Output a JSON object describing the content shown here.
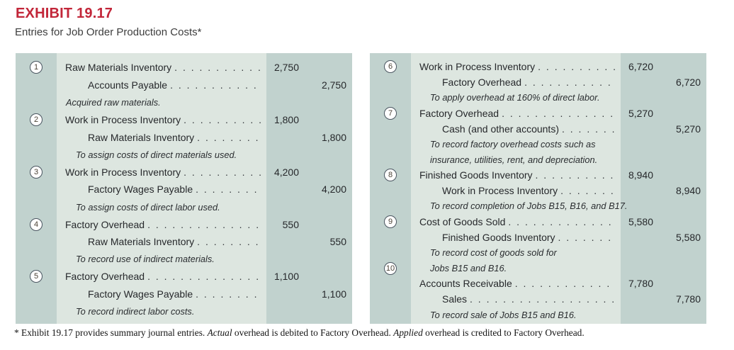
{
  "header": {
    "exhibit_label": "EXHIBIT 19.17",
    "subtitle": "Entries for Job Order Production Costs*"
  },
  "colors": {
    "title_red": "#c22639",
    "panel_light_green": "#dde6e0",
    "panel_medium_green": "#c1d2ce",
    "text_dark": "#26282b"
  },
  "panels": {
    "left": {
      "lines": [
        {
          "circle": "1",
          "kind": "debit",
          "text": "Raw Materials Inventory",
          "debit": "2,750"
        },
        {
          "kind": "credit",
          "text": "Accounts Payable",
          "credit": "2,750"
        },
        {
          "kind": "noteflush",
          "text": "Acquired raw materials."
        },
        {
          "circle": "2",
          "kind": "debit",
          "text": "Work in Process Inventory",
          "debit": "1,800"
        },
        {
          "kind": "credit",
          "text": "Raw Materials Inventory",
          "credit": "1,800"
        },
        {
          "kind": "note",
          "text": "To assign costs of direct materials used."
        },
        {
          "circle": "3",
          "kind": "debit",
          "text": "Work in Process Inventory",
          "debit": "4,200"
        },
        {
          "kind": "credit",
          "text": "Factory Wages Payable",
          "credit": "4,200"
        },
        {
          "kind": "note",
          "text": "To assign costs of direct labor used."
        },
        {
          "circle": "4",
          "kind": "debit",
          "text": "Factory Overhead",
          "debit": "550"
        },
        {
          "kind": "credit",
          "text": "Raw Materials Inventory",
          "credit": "550"
        },
        {
          "kind": "note",
          "text": "To record use of indirect materials."
        },
        {
          "circle": "5",
          "kind": "debit",
          "text": "Factory Overhead",
          "debit": "1,100"
        },
        {
          "kind": "credit",
          "text": "Factory Wages Payable",
          "credit": "1,100"
        },
        {
          "kind": "note",
          "text": "To record indirect labor costs."
        }
      ]
    },
    "right": {
      "lines": [
        {
          "circle": "6",
          "kind": "debit",
          "text": "Work in Process Inventory",
          "debit": "6,720"
        },
        {
          "kind": "credit",
          "text": "Factory Overhead",
          "credit": "6,720"
        },
        {
          "kind": "note",
          "text": "To apply overhead at 160% of direct labor."
        },
        {
          "circle": "7",
          "kind": "debit",
          "text": "Factory Overhead",
          "debit": "5,270"
        },
        {
          "kind": "credit",
          "text": "Cash (and other accounts)",
          "credit": "5,270"
        },
        {
          "kind": "note",
          "text": "To record factory overhead costs such as"
        },
        {
          "kind": "note",
          "text": "insurance, utilities, rent, and depreciation."
        },
        {
          "circle": "8",
          "kind": "debit",
          "text": "Finished Goods Inventory",
          "debit": "8,940"
        },
        {
          "kind": "credit",
          "text": "Work in Process Inventory",
          "credit": "8,940"
        },
        {
          "kind": "note",
          "text": "To record completion of Jobs B15, B16, and B17."
        },
        {
          "circle": "9",
          "kind": "debit",
          "text": "Cost of Goods Sold",
          "debit": "5,580"
        },
        {
          "kind": "credit",
          "text": "Finished Goods Inventory",
          "credit": "5,580"
        },
        {
          "kind": "note",
          "text": "To record cost of goods sold for"
        },
        {
          "circle": "10",
          "kind": "note",
          "text": "Jobs B15 and B16."
        },
        {
          "kind": "debit",
          "text": "Accounts Receivable",
          "debit": "7,780"
        },
        {
          "kind": "credit",
          "text": "Sales",
          "credit": "7,780"
        },
        {
          "kind": "note",
          "text": "To record sale of Jobs B15 and B16."
        }
      ]
    }
  },
  "footnote": {
    "s1": "* Exhibit 19.17 provides summary journal entries. ",
    "i1": "Actual",
    "s2": " overhead is debited to Factory Overhead. ",
    "i2": "Applied",
    "s3": " overhead is credited to Factory Overhead."
  }
}
